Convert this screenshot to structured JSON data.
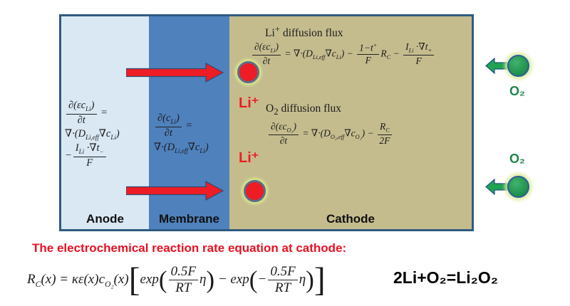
{
  "diagram": {
    "anode": {
      "label": "Anode",
      "eq_line1": [
        {
          "frac": {
            "num": [
              {
                "t": "∂(εc"
              },
              {
                "sub": "Li"
              },
              {
                "t": ")"
              }
            ],
            "den": [
              {
                "t": "∂t"
              }
            ]
          }
        },
        {
          "t": " ="
        }
      ],
      "eq_line2": [
        {
          "t": "∇·("
        },
        {
          "t": "D"
        },
        {
          "sub": "Li,eff"
        },
        {
          "t": "∇c"
        },
        {
          "sub": "Li"
        },
        {
          "t": ")"
        }
      ],
      "eq_line3": [
        {
          "t": "−"
        },
        {
          "frac": {
            "num": [
              {
                "t": "I"
              },
              {
                "sub": "Li"
              },
              {
                "t": " ·∇t"
              },
              {
                "sub": "−"
              }
            ],
            "den": [
              {
                "t": "F"
              }
            ]
          }
        }
      ]
    },
    "membrane": {
      "label": "Membrane",
      "eq_line1": [
        {
          "frac": {
            "num": [
              {
                "t": "∂(c"
              },
              {
                "sub": "Li"
              },
              {
                "t": ")"
              }
            ],
            "den": [
              {
                "t": "∂t"
              }
            ]
          }
        },
        {
          "t": " ="
        }
      ],
      "eq_line2": [
        {
          "t": "∇·("
        },
        {
          "t": "D"
        },
        {
          "sub": "Li,eff"
        },
        {
          "t": "∇c"
        },
        {
          "sub": "Li"
        },
        {
          "t": ")"
        }
      ]
    },
    "cathode": {
      "label": "Cathode",
      "li_flux_heading": [
        {
          "t": "Li"
        },
        {
          "sup": "+"
        },
        {
          "t": " diffusion flux"
        }
      ],
      "li_flux_eq": [
        {
          "frac": {
            "num": [
              {
                "t": "∂(εc"
              },
              {
                "sub": "Li"
              },
              {
                "t": ")"
              }
            ],
            "den": [
              {
                "t": "∂t"
              }
            ]
          }
        },
        {
          "t": " = ∇·("
        },
        {
          "t": "D"
        },
        {
          "sub": "Li,eff"
        },
        {
          "t": "∇c"
        },
        {
          "sub": "Li"
        },
        {
          "t": ") − "
        },
        {
          "frac": {
            "num": [
              {
                "t": "1−t"
              },
              {
                "sup": "+"
              }
            ],
            "den": [
              {
                "t": "F"
              }
            ]
          }
        },
        {
          "t": "R"
        },
        {
          "sub": "C"
        },
        {
          "t": " − "
        },
        {
          "frac": {
            "num": [
              {
                "t": "I"
              },
              {
                "sub": "Li"
              },
              {
                "t": " ·∇t"
              },
              {
                "sub": "+"
              }
            ],
            "den": [
              {
                "t": "F"
              }
            ]
          }
        }
      ],
      "o2_flux_heading": [
        {
          "t": "O"
        },
        {
          "sub": "2"
        },
        {
          "t": " diffusion flux"
        }
      ],
      "o2_flux_eq": [
        {
          "frac": {
            "num": [
              {
                "t": "∂(εc"
              },
              {
                "sub": "O₂"
              },
              {
                "t": ")"
              }
            ],
            "den": [
              {
                "t": "∂t"
              }
            ]
          }
        },
        {
          "t": " = ∇·("
        },
        {
          "t": "D"
        },
        {
          "sub": "O₂,eff"
        },
        {
          "t": "∇c"
        },
        {
          "sub": "O₂"
        },
        {
          "t": ") − "
        },
        {
          "frac": {
            "num": [
              {
                "t": "R"
              },
              {
                "sub": "C"
              }
            ],
            "den": [
              {
                "t": "2F"
              }
            ]
          }
        }
      ],
      "li_ion_label": "Li⁺"
    },
    "oxygen": {
      "label": "O₂"
    },
    "colors": {
      "anode_fill": "#d9e8f3",
      "membrane_fill": "#4f81bd",
      "cathode_fill": "#c5bc8e",
      "box_border": "#2f5a80",
      "arrow_red": "#ee1c25",
      "arrow_outline_blue": "#2c4d75",
      "li_label_red": "#ed1c24",
      "o2_green": "#1d8649",
      "particle_glow": "#d5e48e",
      "title_red": "#e81123"
    }
  },
  "bottom": {
    "title": "The electrochemical reaction rate equation at cathode:",
    "rate_eq": [
      {
        "t": "R"
      },
      {
        "sub": "C"
      },
      {
        "t": "(x) = κε(x)c"
      },
      {
        "sub": "O₂"
      },
      {
        "t": "(x)"
      },
      {
        "t": "[",
        "cls": "big"
      },
      {
        "t": "exp"
      },
      {
        "t": "(",
        "cls": "bigp"
      },
      {
        "frac": {
          "num": [
            {
              "t": "0.5F"
            }
          ],
          "den": [
            {
              "t": "RT"
            }
          ]
        }
      },
      {
        "t": "η"
      },
      {
        "t": ")",
        "cls": "bigp"
      },
      {
        "t": " − exp"
      },
      {
        "t": "(",
        "cls": "bigp"
      },
      {
        "t": "−"
      },
      {
        "frac": {
          "num": [
            {
              "t": "0.5F"
            }
          ],
          "den": [
            {
              "t": "RT"
            }
          ]
        }
      },
      {
        "t": "η"
      },
      {
        "t": ")",
        "cls": "bigp"
      },
      {
        "t": "]",
        "cls": "big"
      }
    ],
    "overall_reaction": "2Li+O₂=Li₂O₂"
  }
}
